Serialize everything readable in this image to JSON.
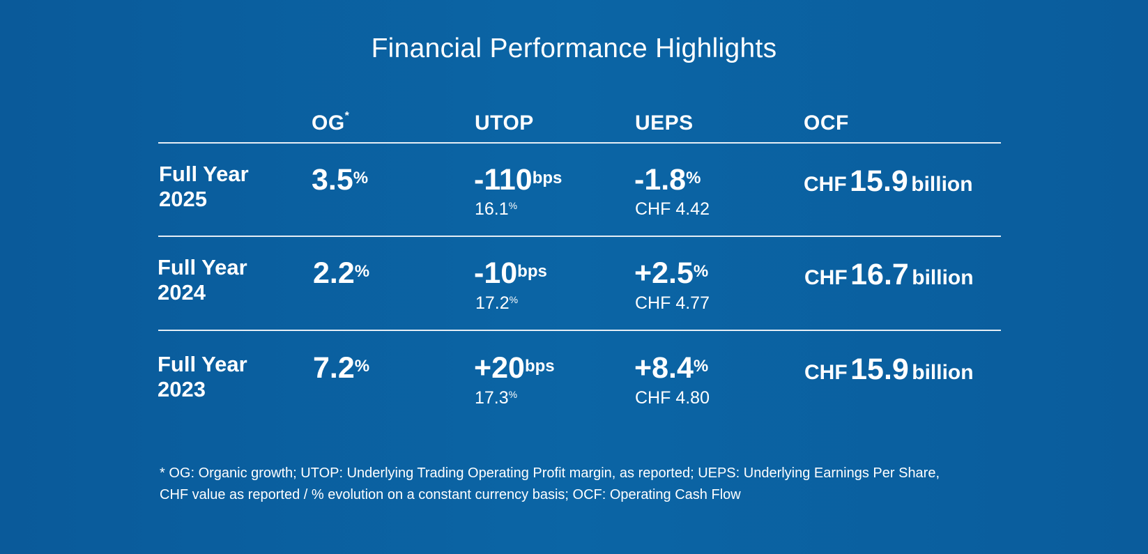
{
  "title": "Financial Performance Highlights",
  "columns": {
    "og": "OG",
    "og_marker": "*",
    "utop": "UTOP",
    "ueps": "UEPS",
    "ocf": "OCF"
  },
  "rows": [
    {
      "label_line1": "Full Year",
      "label_line2": "2025",
      "og_value": "3.5",
      "og_unit": "%",
      "utop_value": "-110",
      "utop_unit": "bps",
      "utop_margin": "16.1",
      "utop_margin_unit": "%",
      "ueps_value": "-1.8",
      "ueps_unit": "%",
      "ueps_chf": "CHF 4.42",
      "ocf_currency": "CHF",
      "ocf_value": "15.9",
      "ocf_unit": "billion"
    },
    {
      "label_line1": "Full Year",
      "label_line2": "2024",
      "og_value": "2.2",
      "og_unit": "%",
      "utop_value": "-10",
      "utop_unit": "bps",
      "utop_margin": "17.2",
      "utop_margin_unit": "%",
      "ueps_value": "+2.5",
      "ueps_unit": "%",
      "ueps_chf": "CHF 4.77",
      "ocf_currency": "CHF",
      "ocf_value": "16.7",
      "ocf_unit": "billion"
    },
    {
      "label_line1": "Full Year",
      "label_line2": "2023",
      "og_value": "7.2",
      "og_unit": "%",
      "utop_value": "+20",
      "utop_unit": "bps",
      "utop_margin": "17.3",
      "utop_margin_unit": "%",
      "ueps_value": "+8.4",
      "ueps_unit": "%",
      "ueps_chf": "CHF 4.80",
      "ocf_currency": "CHF",
      "ocf_value": "15.9",
      "ocf_unit": "billion"
    }
  ],
  "footnote": {
    "line1": "* OG: Organic growth; UTOP: Underlying Trading Operating Profit margin, as reported; UEPS: Underlying Earnings Per Share,",
    "line2": "CHF value as reported / % evolution on a constant currency basis; OCF: Operating Cash Flow"
  },
  "colors": {
    "background": "#0b62a2",
    "text": "#ffffff",
    "rule": "#e6eef6"
  }
}
